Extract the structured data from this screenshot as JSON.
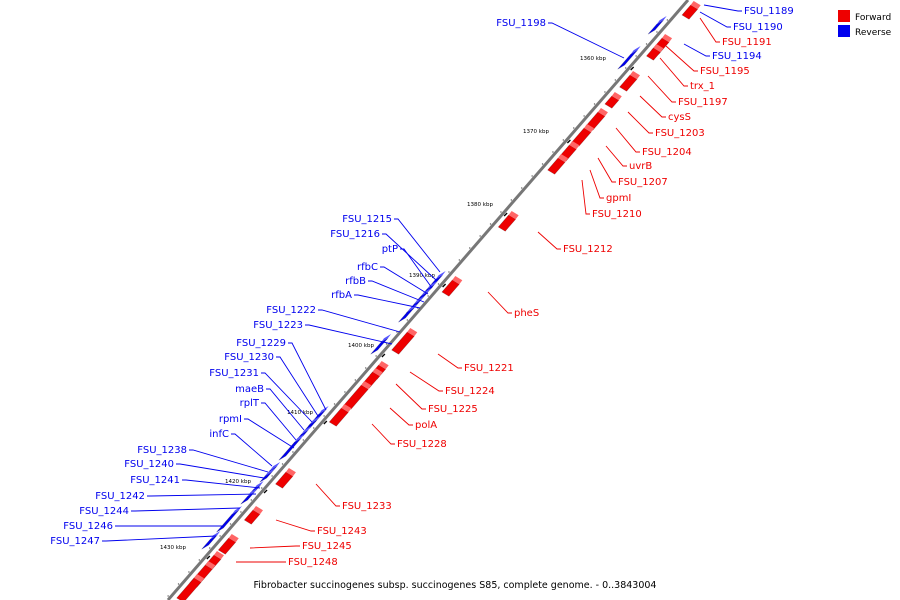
{
  "caption": "Fibrobacter succinogenes subsp. succinogenes S85, complete genome. - 0..3843004",
  "legend": [
    {
      "label": "Forward",
      "color": "#ee0000"
    },
    {
      "label": "Reverse",
      "color": "#0000ee"
    }
  ],
  "colors": {
    "forward": "#ee0000",
    "reverse": "#0000ee",
    "axis": "#888888"
  },
  "axis_ticks": [
    "1360 kbp",
    "1370 kbp",
    "1380 kbp",
    "1390 kbp",
    "1400 kbp",
    "1410 kbp",
    "1420 kbp",
    "1430 kbp"
  ],
  "reverse_labels": [
    "FSU_1189",
    "FSU_1190",
    "FSU_1194",
    "FSU_1198",
    "FSU_1215",
    "FSU_1216",
    "ptP",
    "rfbC",
    "rfbB",
    "rfbA",
    "FSU_1222",
    "FSU_1223",
    "FSU_1229",
    "FSU_1230",
    "FSU_1231",
    "maeB",
    "rplT",
    "rpmI",
    "infC",
    "FSU_1238",
    "FSU_1240",
    "FSU_1241",
    "FSU_1242",
    "FSU_1244",
    "FSU_1246",
    "FSU_1247"
  ],
  "forward_labels": [
    "FSU_1191",
    "FSU_1195",
    "trx_1",
    "FSU_1197",
    "cysS",
    "FSU_1203",
    "FSU_1204",
    "uvrB",
    "FSU_1207",
    "gpmI",
    "FSU_1210",
    "FSU_1212",
    "pheS",
    "FSU_1221",
    "FSU_1224",
    "FSU_1225",
    "polA",
    "FSU_1228",
    "FSU_1233",
    "FSU_1243",
    "FSU_1245",
    "FSU_1248"
  ]
}
